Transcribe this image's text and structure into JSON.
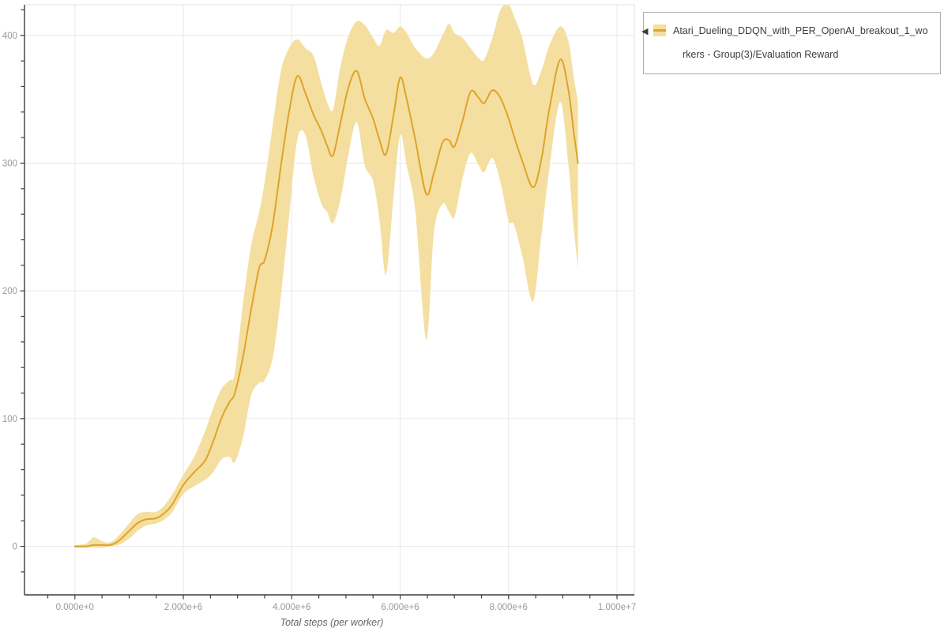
{
  "legend": {
    "items": [
      {
        "icon": "◀",
        "label": "Atari_Dueling_DDQN_with_PER_OpenAI_breakout_1_workers - Group(3)/Evaluation Reward",
        "line_color": "#dfa32a",
        "band_color": "#f4dfa0"
      }
    ]
  },
  "chart_data": {
    "type": "line",
    "title": "",
    "xlabel": "Total steps (per worker)",
    "ylabel": "",
    "grid": "major",
    "legend_position": "top-right",
    "xlim": [
      -930000,
      10320000
    ],
    "ylim": [
      -38,
      424
    ],
    "x_ticks": {
      "values": [
        0,
        2000000,
        4000000,
        6000000,
        8000000,
        10000000
      ],
      "labels": [
        "0.000e+0",
        "2.000e+6",
        "4.000e+6",
        "6.000e+6",
        "8.000e+6",
        "1.000e+7"
      ]
    },
    "y_ticks": {
      "values": [
        0,
        100,
        200,
        300,
        400
      ],
      "labels": [
        "0",
        "100",
        "200",
        "300",
        "400"
      ]
    },
    "x_minor_step": 500000,
    "y_minor_step": 20,
    "colors": {
      "line": "#dfa32a",
      "band": "#f4dfa0",
      "grid": "#e8e8e8",
      "spine": "#3c3c3c",
      "tick_label": "#999999",
      "axis_title": "#666666"
    },
    "series": [
      {
        "name": "Atari_Dueling_DDQN_with_PER_OpenAI_breakout_1_workers - Group(3)/Evaluation Reward",
        "x": [
          0,
          200000,
          350000,
          500000,
          650000,
          800000,
          1000000,
          1150000,
          1300000,
          1500000,
          1650000,
          1800000,
          2000000,
          2200000,
          2400000,
          2550000,
          2700000,
          2850000,
          2950000,
          3100000,
          3250000,
          3400000,
          3500000,
          3650000,
          3800000,
          3950000,
          4100000,
          4250000,
          4400000,
          4550000,
          4650000,
          4760000,
          4900000,
          5050000,
          5200000,
          5350000,
          5500000,
          5620000,
          5740000,
          5880000,
          6000000,
          6120000,
          6280000,
          6480000,
          6620000,
          6780000,
          6900000,
          7000000,
          7150000,
          7300000,
          7450000,
          7550000,
          7700000,
          7850000,
          8000000,
          8100000,
          8250000,
          8450000,
          8600000,
          8750000,
          8950000,
          9100000,
          9200000,
          9280000
        ],
        "mean": [
          0,
          0,
          1,
          1,
          1,
          4,
          12,
          18,
          21,
          22,
          26,
          33,
          48,
          58,
          67,
          82,
          100,
          113,
          120,
          148,
          185,
          218,
          224,
          252,
          298,
          340,
          368,
          355,
          338,
          325,
          314,
          306,
          332,
          360,
          372,
          350,
          335,
          318,
          307,
          338,
          367,
          350,
          318,
          276,
          292,
          316,
          318,
          313,
          333,
          356,
          351,
          347,
          357,
          351,
          335,
          321,
          302,
          281,
          302,
          342,
          381,
          358,
          325,
          300
        ],
        "band_low": [
          -1,
          -1,
          -1,
          -1,
          0,
          1,
          6,
          12,
          16,
          18,
          21,
          27,
          41,
          47,
          52,
          58,
          68,
          70,
          66,
          85,
          118,
          128,
          130,
          148,
          196,
          258,
          318,
          322,
          290,
          268,
          262,
          253,
          272,
          308,
          332,
          298,
          286,
          255,
          213,
          275,
          322,
          298,
          262,
          162,
          245,
          268,
          262,
          258,
          288,
          308,
          298,
          293,
          304,
          285,
          255,
          252,
          228,
          192,
          242,
          295,
          348,
          300,
          250,
          218
        ],
        "band_high": [
          1,
          2,
          7,
          4,
          3,
          8,
          18,
          25,
          27,
          27,
          32,
          41,
          56,
          70,
          90,
          108,
          123,
          130,
          136,
          190,
          235,
          262,
          285,
          330,
          372,
          390,
          397,
          390,
          384,
          362,
          348,
          342,
          376,
          400,
          411,
          408,
          398,
          392,
          404,
          402,
          407,
          402,
          390,
          382,
          386,
          400,
          409,
          402,
          398,
          390,
          382,
          381,
          398,
          420,
          424,
          415,
          398,
          362,
          372,
          392,
          407,
          396,
          368,
          348
        ]
      }
    ]
  }
}
